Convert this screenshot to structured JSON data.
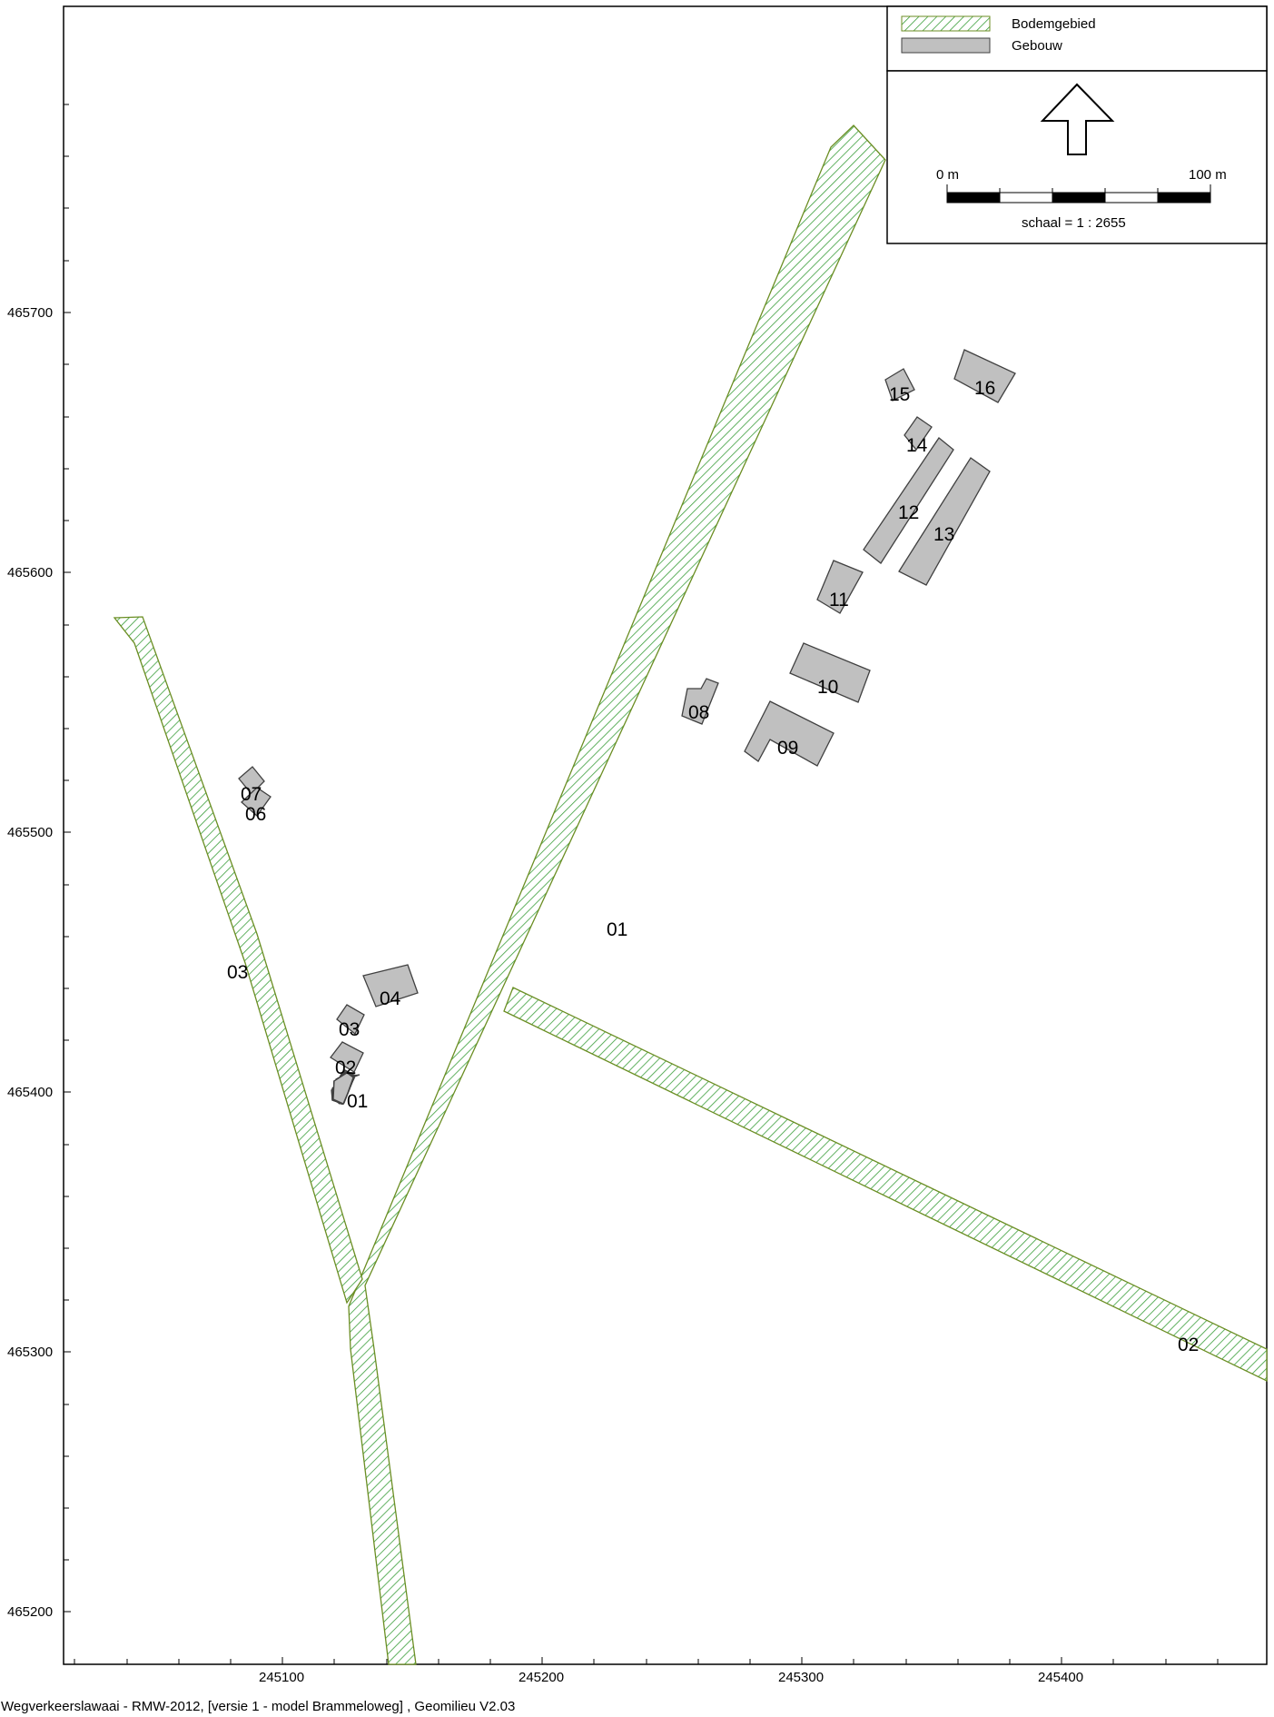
{
  "legend": {
    "items": [
      {
        "label": "Bodemgebied",
        "symbol": "hatch-green"
      },
      {
        "label": "Gebouw",
        "symbol": "fill-grey"
      }
    ]
  },
  "north_arrow": {
    "icon": "north-arrow-icon"
  },
  "scalebar": {
    "start_label": "0 m",
    "end_label": "100 m",
    "scale_text": "schaal = 1 : 2655"
  },
  "axes": {
    "x_ticks": [
      "245100",
      "245200",
      "245300",
      "245400"
    ],
    "y_ticks": [
      "465700",
      "465600",
      "465500",
      "465400",
      "465300",
      "465200"
    ]
  },
  "areas": [
    {
      "id": "01"
    },
    {
      "id": "02"
    },
    {
      "id": "03"
    }
  ],
  "buildings": [
    {
      "id": "01"
    },
    {
      "id": "02"
    },
    {
      "id": "03"
    },
    {
      "id": "04"
    },
    {
      "id": "06"
    },
    {
      "id": "07"
    },
    {
      "id": "08"
    },
    {
      "id": "09"
    },
    {
      "id": "10"
    },
    {
      "id": "11"
    },
    {
      "id": "12"
    },
    {
      "id": "13"
    },
    {
      "id": "14"
    },
    {
      "id": "15"
    },
    {
      "id": "16"
    }
  ],
  "colors": {
    "hatch": "#3a9e3a",
    "hatch_outline": "#6b8e23",
    "building_fill": "#c0c0c0",
    "building_stroke": "#404040"
  },
  "footer": {
    "text": "Wegverkeerslawaai - RMW-2012, [versie 1 - model Brammeloweg] , Geomilieu V2.03"
  }
}
